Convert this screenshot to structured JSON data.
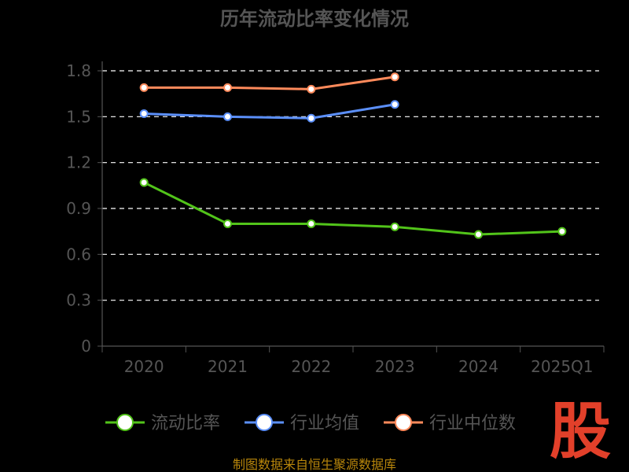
{
  "chart_data": {
    "type": "line",
    "title": "历年流动比率变化情况",
    "categories": [
      "2020",
      "2021",
      "2022",
      "2023",
      "2024",
      "2025Q1"
    ],
    "y_ticks": [
      "0",
      "0.3",
      "0.6",
      "0.9",
      "1.2",
      "1.5",
      "1.8"
    ],
    "ylim": [
      0,
      1.8
    ],
    "grid": true,
    "legend_position": "bottom",
    "series": [
      {
        "name": "流动比率",
        "color": "#52c41a",
        "values": [
          1.07,
          0.8,
          0.8,
          0.78,
          0.73,
          0.75
        ]
      },
      {
        "name": "行业均值",
        "color": "#5b8ff9",
        "values": [
          1.52,
          1.5,
          1.49,
          1.58,
          null,
          null
        ]
      },
      {
        "name": "行业中位数",
        "color": "#ff8a5b",
        "values": [
          1.69,
          1.69,
          1.68,
          1.76,
          null,
          null
        ]
      }
    ]
  },
  "source_text": "制图数据来自恒生聚源数据库",
  "logo_text": "股"
}
